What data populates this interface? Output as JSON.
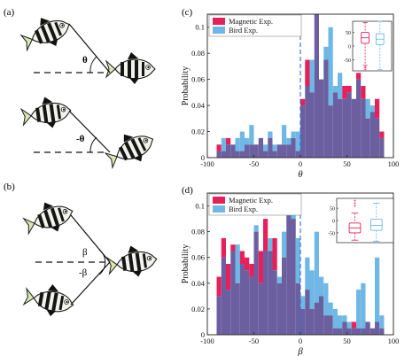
{
  "panel_labels": {
    "a": "(a)",
    "b": "(b)",
    "c": "(c)",
    "d": "(d)"
  },
  "schematic": {
    "theta_pos": "θ",
    "theta_neg": "-θ",
    "beta_pos": "β",
    "beta_neg": "-β"
  },
  "colors": {
    "magnetic": "#e8205a",
    "bird": "#6fb8e6",
    "overlap": "#6b5fa0",
    "zero_line": "#2e6fd0"
  },
  "chart_data": [
    {
      "id": "c",
      "type": "bar",
      "xlabel": "θ",
      "ylabel": "Probability",
      "xlim": [
        -100,
        100
      ],
      "ylim": [
        0,
        0.11
      ],
      "xticks": [
        "-100",
        "-50",
        "0",
        "50",
        "100"
      ],
      "xtick_values": [
        -100,
        -50,
        0,
        50,
        100
      ],
      "yticks": [
        "0",
        "0.02",
        "0.04",
        "0.06",
        "0.08",
        "0.1"
      ],
      "ytick_values": [
        0,
        0.02,
        0.04,
        0.06,
        0.08,
        0.1
      ],
      "legend_position": "top-left",
      "zero_line": 0,
      "bin_width": 5,
      "bins_start": -90,
      "bins_end": 90,
      "series": [
        {
          "name": "Magnetic Exp.",
          "values": [
            0.01,
            0.005,
            0.015,
            0.01,
            0.005,
            0.005,
            0.01,
            0.01,
            0.01,
            0.015,
            0.005,
            0.015,
            0.005,
            0.01,
            0.01,
            0.01,
            0.015,
            0.005,
            0.045,
            0.075,
            0.05,
            0.11,
            0.06,
            0.075,
            0.04,
            0.05,
            0.045,
            0.055,
            0.055,
            0.045,
            0.065,
            0.055,
            0.03,
            0.035,
            0.045,
            0.02
          ]
        },
        {
          "name": "Bird Exp.",
          "values": [
            0.005,
            0.015,
            0.01,
            0.01,
            0.015,
            0.02,
            0.015,
            0.025,
            0.01,
            0.015,
            0.01,
            0.02,
            0.01,
            0.01,
            0.025,
            0.015,
            0.02,
            0.02,
            0.04,
            0.055,
            0.075,
            0.11,
            0.06,
            0.085,
            0.1,
            0.055,
            0.065,
            0.045,
            0.05,
            0.045,
            0.06,
            0.045,
            0.045,
            0.04,
            0.03,
            0.015
          ]
        }
      ],
      "inset": {
        "type": "box",
        "yticks": [
          "50",
          "0",
          "-50"
        ],
        "ytick_values": [
          50,
          0,
          -50
        ],
        "ylim": [
          -90,
          90
        ],
        "boxes": [
          {
            "series": "Magnetic Exp.",
            "min": -70,
            "q1": 10,
            "median": 30,
            "q3": 50,
            "max": 85,
            "outliers": [
              -75,
              -80,
              -85
            ]
          },
          {
            "series": "Bird Exp.",
            "min": -85,
            "q1": 5,
            "median": 25,
            "q3": 45,
            "max": 90,
            "outliers": []
          }
        ]
      }
    },
    {
      "id": "d",
      "type": "bar",
      "xlabel": "β",
      "ylabel": "Probability",
      "xlim": [
        -100,
        100
      ],
      "ylim": [
        0,
        0.11
      ],
      "xticks": [
        "-100",
        "-50",
        "0",
        "50",
        "100"
      ],
      "xtick_values": [
        -100,
        -50,
        0,
        50,
        100
      ],
      "yticks": [
        "0",
        "0.02",
        "0.04",
        "0.06",
        "0.08",
        "0.1"
      ],
      "ytick_values": [
        0,
        0.02,
        0.04,
        0.06,
        0.08,
        0.1
      ],
      "legend_position": "top-left",
      "zero_line": 0,
      "bin_width": 5,
      "bins_start": -90,
      "bins_end": 90,
      "series": [
        {
          "name": "Magnetic Exp.",
          "values": [
            0.045,
            0.075,
            0.055,
            0.07,
            0.04,
            0.065,
            0.06,
            0.055,
            0.08,
            0.065,
            0.09,
            0.065,
            0.075,
            0.04,
            0.06,
            0.1,
            0.09,
            0.04,
            0.02,
            0.035,
            0.02,
            0.025,
            0.03,
            0.015,
            0.015,
            0.005,
            0.005,
            0.01,
            0.005,
            0.01,
            0.005,
            0.005,
            0.01,
            0.005,
            0.01,
            0.005
          ]
        },
        {
          "name": "Bird Exp.",
          "values": [
            0.03,
            0.06,
            0.035,
            0.065,
            0.07,
            0.055,
            0.05,
            0.045,
            0.085,
            0.04,
            0.065,
            0.075,
            0.05,
            0.045,
            0.08,
            0.105,
            0.095,
            0.075,
            0.03,
            0.06,
            0.05,
            0.08,
            0.045,
            0.04,
            0.025,
            0.02,
            0.015,
            0.015,
            0.01,
            0.005,
            0.035,
            0.04,
            0.01,
            0.005,
            0.06,
            0.015
          ]
        }
      ],
      "inset": {
        "type": "box",
        "yticks": [
          "50",
          "0",
          "-50"
        ],
        "ytick_values": [
          50,
          0,
          -50
        ],
        "ylim": [
          -90,
          90
        ],
        "boxes": [
          {
            "series": "Magnetic Exp.",
            "min": -80,
            "q1": -50,
            "median": -30,
            "q3": -10,
            "max": 30,
            "outliers": [
              60,
              70,
              80
            ]
          },
          {
            "series": "Bird Exp.",
            "min": -85,
            "q1": -40,
            "median": -20,
            "q3": 5,
            "max": 70,
            "outliers": []
          }
        ]
      }
    }
  ]
}
